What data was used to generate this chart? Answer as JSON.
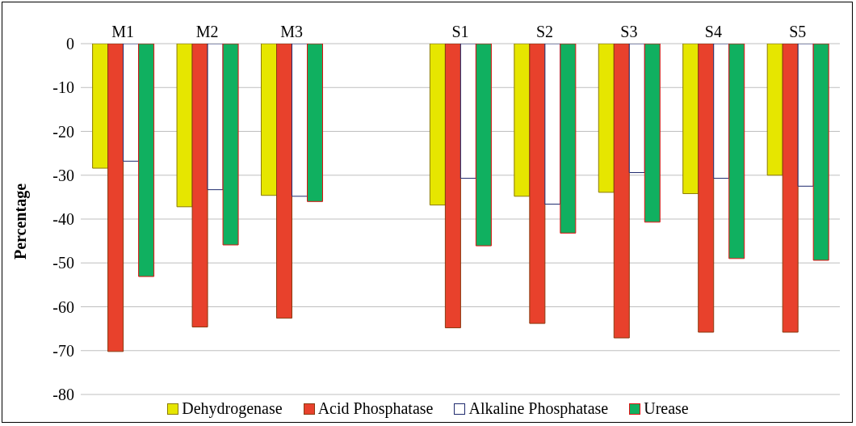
{
  "chart_data": {
    "type": "bar",
    "ylabel": "Percentage",
    "categories": [
      "M1",
      "M2",
      "M3",
      null,
      "S1",
      "S2",
      "S3",
      "S4",
      "S5"
    ],
    "series": [
      {
        "name": "Dehydrogenase",
        "color": "#e6e600",
        "values": [
          -28.4,
          -37.2,
          -34.6,
          null,
          -36.8,
          -34.8,
          -33.9,
          -34.2,
          -30.0
        ]
      },
      {
        "name": "Acid Phosphatase",
        "color": "#e8412c",
        "values": [
          -70.2,
          -64.6,
          -62.6,
          null,
          -64.8,
          -63.8,
          -67.1,
          -65.8,
          -65.8
        ]
      },
      {
        "name": "Alkaline Phosphatase",
        "color": "#ffffff",
        "values": [
          -26.8,
          -33.3,
          -34.8,
          null,
          -30.7,
          -36.6,
          -29.4,
          -30.7,
          -32.5
        ]
      },
      {
        "name": "Urease",
        "color": "#10b060",
        "values": [
          -53.1,
          -45.9,
          -36.0,
          null,
          -46.1,
          -43.2,
          -40.7,
          -49.0,
          -49.4
        ]
      }
    ],
    "ylim": [
      -80,
      0
    ],
    "yticks": [
      -80,
      -70,
      -60,
      -50,
      -40,
      -30,
      -20,
      -10,
      0
    ],
    "grid": "y",
    "legend": "bottom"
  }
}
